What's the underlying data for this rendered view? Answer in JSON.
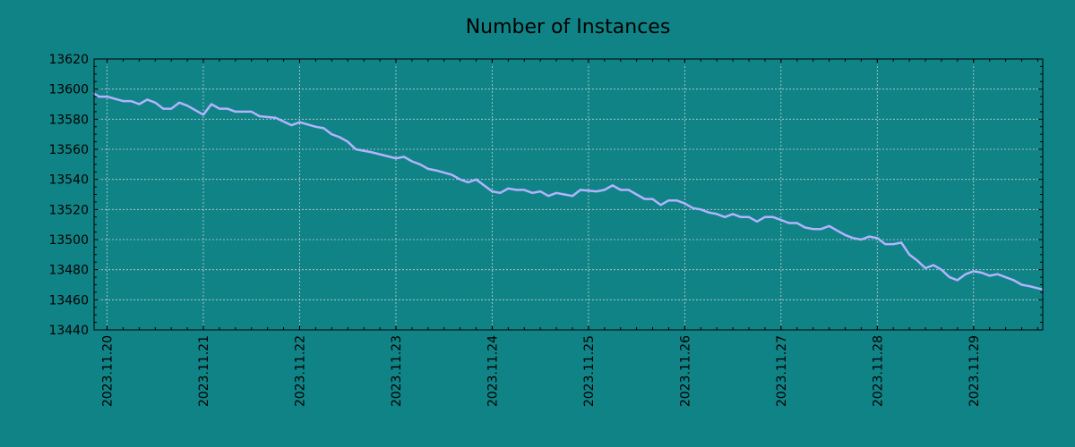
{
  "colors": {
    "background": "#108386",
    "line": "#b3b3ff"
  },
  "chart_data": {
    "type": "line",
    "title": "Number of Instances",
    "xlabel": "",
    "ylabel": "",
    "ylim": [
      13440,
      13620
    ],
    "xlim": [
      "2023-11-19 20:45",
      "2023-11-29 17:15"
    ],
    "grid": true,
    "y_ticks": [
      13440,
      13460,
      13480,
      13500,
      13520,
      13540,
      13560,
      13580,
      13600,
      13620
    ],
    "x_ticks": [
      "2023.11.20",
      "2023.11.21",
      "2023.11.22",
      "2023.11.23",
      "2023.11.24",
      "2023.11.25",
      "2023.11.26",
      "2023.11.27",
      "2023.11.28",
      "2023.11.29"
    ],
    "series": [
      {
        "x": [
          "2023-11-19 20:45",
          "2023-11-19 22:00",
          "2023-11-20 00:00",
          "2023-11-20 04:00",
          "2023-11-20 06:00",
          "2023-11-20 08:00",
          "2023-11-20 10:00",
          "2023-11-20 12:00",
          "2023-11-20 14:00",
          "2023-11-20 16:00",
          "2023-11-20 18:00",
          "2023-11-20 20:00",
          "2023-11-21 00:00",
          "2023-11-21 02:00",
          "2023-11-21 04:00",
          "2023-11-21 06:00",
          "2023-11-21 08:00",
          "2023-11-21 10:00",
          "2023-11-21 12:00",
          "2023-11-21 14:00",
          "2023-11-21 18:00",
          "2023-11-21 22:00",
          "2023-11-22 00:00",
          "2023-11-22 04:00",
          "2023-11-22 06:00",
          "2023-11-22 08:00",
          "2023-11-22 10:00",
          "2023-11-22 12:00",
          "2023-11-22 14:00",
          "2023-11-22 18:00",
          "2023-11-23 00:00",
          "2023-11-23 02:00",
          "2023-11-23 04:00",
          "2023-11-23 06:00",
          "2023-11-23 08:00",
          "2023-11-23 10:00",
          "2023-11-23 14:00",
          "2023-11-23 16:00",
          "2023-11-23 18:00",
          "2023-11-23 20:00",
          "2023-11-24 00:00",
          "2023-11-24 02:00",
          "2023-11-24 04:00",
          "2023-11-24 06:00",
          "2023-11-24 08:00",
          "2023-11-24 10:00",
          "2023-11-24 12:00",
          "2023-11-24 14:00",
          "2023-11-24 16:00",
          "2023-11-24 18:00",
          "2023-11-24 20:00",
          "2023-11-24 22:00",
          "2023-11-25 02:00",
          "2023-11-25 04:00",
          "2023-11-25 06:00",
          "2023-11-25 08:00",
          "2023-11-25 10:00",
          "2023-11-25 12:00",
          "2023-11-25 14:00",
          "2023-11-25 16:00",
          "2023-11-25 18:00",
          "2023-11-25 20:00",
          "2023-11-25 22:00",
          "2023-11-26 00:00",
          "2023-11-26 02:00",
          "2023-11-26 04:00",
          "2023-11-26 06:00",
          "2023-11-26 08:00",
          "2023-11-26 10:00",
          "2023-11-26 12:00",
          "2023-11-26 14:00",
          "2023-11-26 16:00",
          "2023-11-26 18:00",
          "2023-11-26 20:00",
          "2023-11-26 22:00",
          "2023-11-27 00:00",
          "2023-11-27 02:00",
          "2023-11-27 04:00",
          "2023-11-27 06:00",
          "2023-11-27 08:00",
          "2023-11-27 10:00",
          "2023-11-27 12:00",
          "2023-11-27 14:00",
          "2023-11-27 16:00",
          "2023-11-27 18:00",
          "2023-11-27 20:00",
          "2023-11-27 22:00",
          "2023-11-28 00:00",
          "2023-11-28 02:00",
          "2023-11-28 04:00",
          "2023-11-28 06:00",
          "2023-11-28 08:00",
          "2023-11-28 10:00",
          "2023-11-28 12:00",
          "2023-11-28 14:00",
          "2023-11-28 16:00",
          "2023-11-28 18:00",
          "2023-11-28 20:00",
          "2023-11-28 22:00",
          "2023-11-29 00:00",
          "2023-11-29 02:00",
          "2023-11-29 04:00",
          "2023-11-29 06:00",
          "2023-11-29 08:00",
          "2023-11-29 10:00",
          "2023-11-29 12:00",
          "2023-11-29 14:00",
          "2023-11-29 17:00"
        ],
        "y": [
          13597,
          13595,
          13595,
          13592,
          13592,
          13590,
          13593,
          13591,
          13587,
          13587,
          13591,
          13589,
          13583,
          13590,
          13587,
          13587,
          13585,
          13585,
          13585,
          13582,
          13581,
          13576,
          13578,
          13575,
          13574,
          13570,
          13568,
          13565,
          13560,
          13558,
          13554,
          13555,
          13552,
          13550,
          13547,
          13546,
          13543,
          13540,
          13538,
          13540,
          13532,
          13531,
          13534,
          13533,
          13533,
          13531,
          13532,
          13529,
          13531,
          13530,
          13529,
          13533,
          13532,
          13533,
          13536,
          13533,
          13533,
          13530,
          13527,
          13527,
          13523,
          13526,
          13526,
          13524,
          13521,
          13520,
          13518,
          13517,
          13515,
          13517,
          13515,
          13515,
          13512,
          13515,
          13515,
          13513,
          13511,
          13511,
          13508,
          13507,
          13507,
          13509,
          13506,
          13503,
          13501,
          13500,
          13502,
          13501,
          13497,
          13497,
          13498,
          13490,
          13486,
          13481,
          13483,
          13480,
          13475,
          13473,
          13477,
          13479,
          13478,
          13476,
          13477,
          13475,
          13473,
          13470,
          13469,
          13467
        ]
      }
    ]
  }
}
